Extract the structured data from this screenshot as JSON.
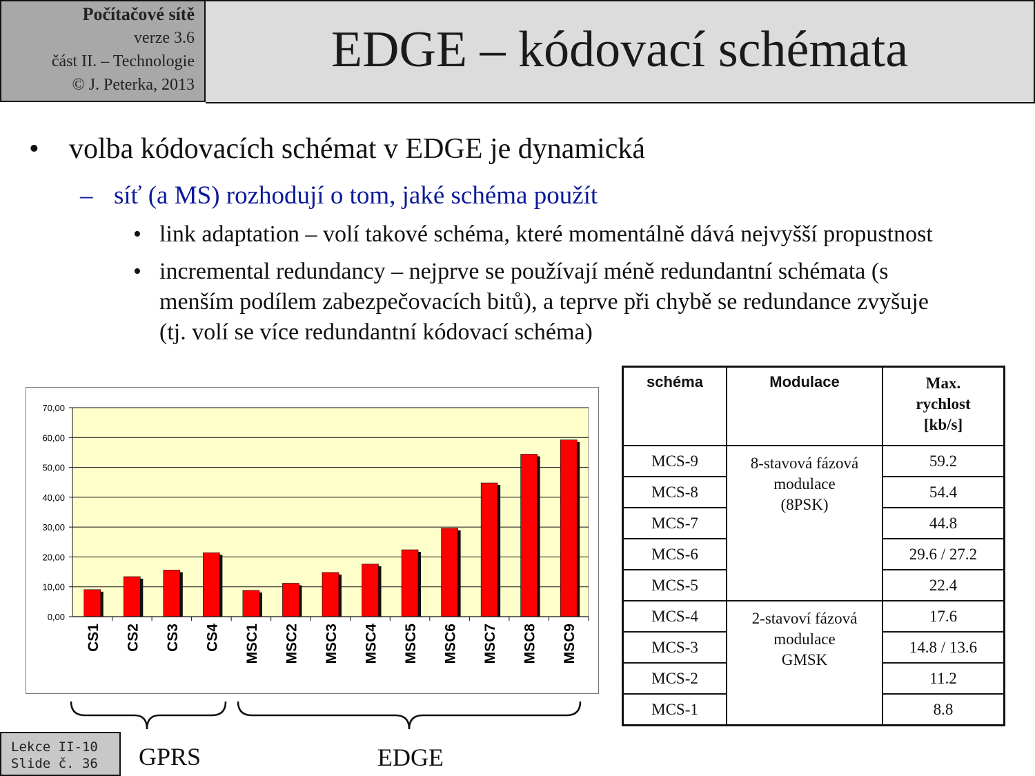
{
  "header": {
    "course": "Počítačové sítě",
    "version": "verze 3.6",
    "part": "část  II. – Technologie",
    "author": "© J. Peterka, 2013",
    "title": "EDGE – kódovací schémata"
  },
  "bullets": {
    "level1": "volba kódovacích schémat v EDGE je dynamická",
    "level2": "síť (a MS) rozhodují o tom, jaké schéma použít",
    "level3_a": "link adaptation – volí takové schéma, které momentálně dává nejvyšší propustnost",
    "level3_b_line1": "incremental redundancy – nejprve se používají méně  redundantní schémata (s",
    "level3_b_line2": "menším podílem zabezpečovacích bitů), a teprve při chybě se redundance zvyšuje",
    "level3_b_line3": "(tj. volí se více redundantní kódovací schéma)",
    "marker_l1": "•",
    "marker_l2": "–",
    "marker_l3": "•"
  },
  "chart_data": {
    "type": "bar",
    "categories": [
      "CS1",
      "CS2",
      "CS3",
      "CS4",
      "MSC1",
      "MSC2",
      "MSC3",
      "MSC4",
      "MSC5",
      "MSC6",
      "MSC7",
      "MSC8",
      "MSC9"
    ],
    "values": [
      9.05,
      13.4,
      15.6,
      21.4,
      8.8,
      11.2,
      14.8,
      17.6,
      22.4,
      29.6,
      44.8,
      54.4,
      59.2
    ],
    "yticks": [
      "0,00",
      "10,00",
      "20,00",
      "30,00",
      "40,00",
      "50,00",
      "60,00",
      "70,00"
    ],
    "ylim": [
      0,
      70
    ],
    "grid": true,
    "bar_color": "#ff0000",
    "plot_bg": "#ffffcc"
  },
  "table": {
    "headers": [
      "schéma",
      "Modulace",
      "Max. rychlost [kb/s]"
    ],
    "header_max_line1": "Max.",
    "header_max_line2": "rychlost",
    "header_max_line3": "[kb/s]",
    "rows": [
      {
        "scheme": "MCS-9",
        "speed": "59.2"
      },
      {
        "scheme": "MCS-8",
        "speed": "54.4"
      },
      {
        "scheme": "MCS-7",
        "speed": "44.8"
      },
      {
        "scheme": "MCS-6",
        "speed": "29.6 / 27.2"
      },
      {
        "scheme": "MCS-5",
        "speed": "22.4"
      },
      {
        "scheme": "MCS-4",
        "speed": "17.6"
      },
      {
        "scheme": "MCS-3",
        "speed": "14.8 / 13.6"
      },
      {
        "scheme": "MCS-2",
        "speed": "11.2"
      },
      {
        "scheme": "MCS-1",
        "speed": "8.8"
      }
    ],
    "mod_8psk_line1": "8-stavová fázová",
    "mod_8psk_line2": "modulace",
    "mod_8psk_line3": "(8PSK)",
    "mod_gmsk_line1": "2-stavoví fázová",
    "mod_gmsk_line2": "modulace",
    "mod_gmsk_line3": "GMSK"
  },
  "groups": {
    "gprs": "GPRS",
    "edge": "EDGE"
  },
  "footer": {
    "lecture": "Lekce II-10",
    "slide": "Slide č. 36"
  }
}
